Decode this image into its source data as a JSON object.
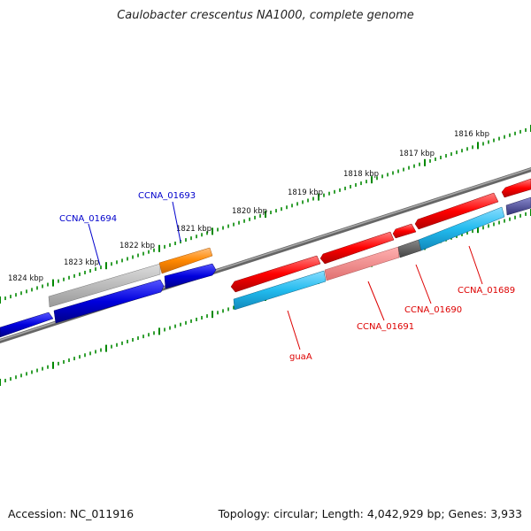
{
  "title": "Caulobacter crescentus NA1000, complete genome",
  "footer": {
    "accession": "Accession: NC_011916",
    "topology": "Topology: circular; Length: 4,042,929 bp; Genes: 3,933"
  },
  "colors": {
    "plus_strand": "#ff0000",
    "minus_strand": "#0000dd",
    "cyan": "#22bbee",
    "orange": "#ff8800",
    "gray": "#aaaaaa",
    "backbone": "#777777",
    "ticks": "#008800",
    "label_red": "#dd0000",
    "label_blue": "#0000cc"
  },
  "kbp_labels": [
    "1816 kbp",
    "1817 kbp",
    "1818 kbp",
    "1819 kbp",
    "1820 kbp",
    "1821 kbp",
    "1822 kbp",
    "1823 kbp",
    "1824 kbp"
  ],
  "gene_labels": [
    {
      "name": "CCNA_01694",
      "color": "blue"
    },
    {
      "name": "CCNA_01693",
      "color": "blue"
    },
    {
      "name": "guaA",
      "color": "red"
    },
    {
      "name": "CCNA_01691",
      "color": "red"
    },
    {
      "name": "CCNA_01690",
      "color": "red"
    },
    {
      "name": "CCNA_01689",
      "color": "red"
    }
  ]
}
